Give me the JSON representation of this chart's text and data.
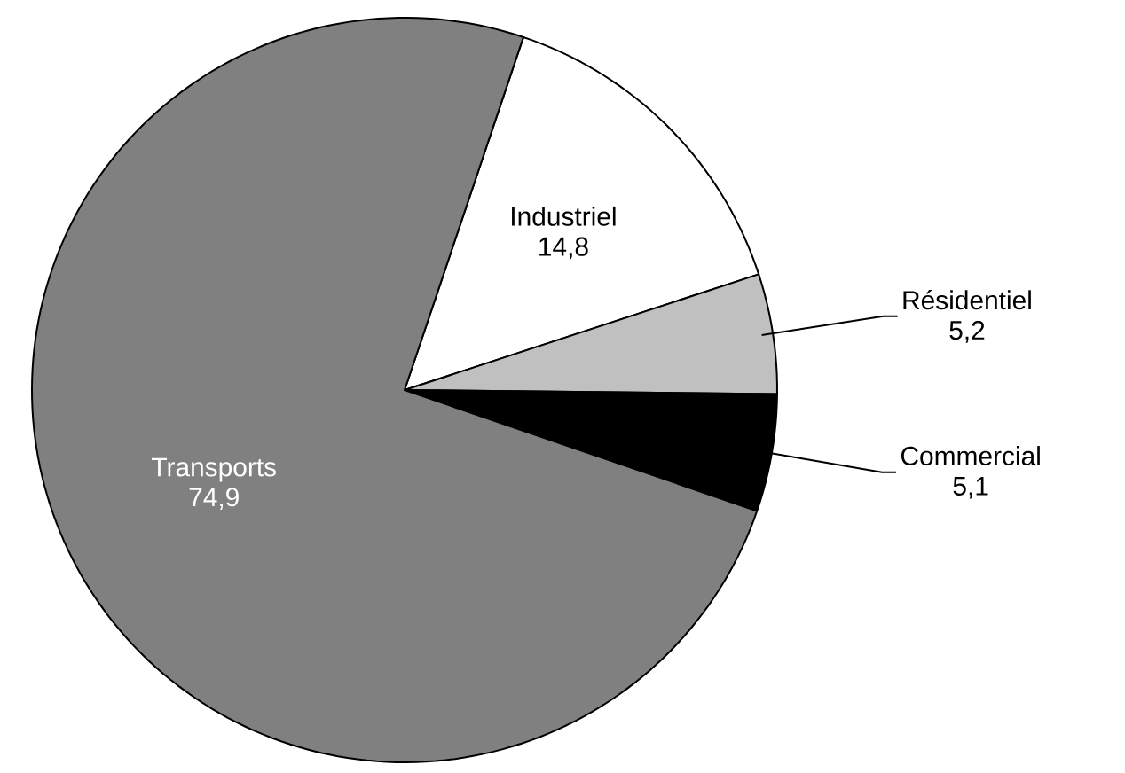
{
  "chart_data": {
    "type": "pie",
    "categories": [
      "Industriel",
      "Résidentiel",
      "Commercial",
      "Transports"
    ],
    "values": [
      14.8,
      5.2,
      5.1,
      74.9
    ],
    "value_labels": [
      "14,8",
      "5,2",
      "5,1",
      "74,9"
    ],
    "colors": [
      "#ffffff",
      "#c0c0c0",
      "#000000",
      "#808080"
    ]
  }
}
